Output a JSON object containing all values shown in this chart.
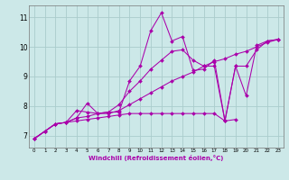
{
  "xlabel": "Windchill (Refroidissement éolien,°C)",
  "background_color": "#cce8e8",
  "grid_color": "#aacccc",
  "line_color": "#aa00aa",
  "xlim": [
    -0.5,
    23.5
  ],
  "ylim": [
    6.6,
    11.4
  ],
  "yticks": [
    7,
    8,
    9,
    10,
    11
  ],
  "xticks": [
    0,
    1,
    2,
    3,
    4,
    5,
    6,
    7,
    8,
    9,
    10,
    11,
    12,
    13,
    14,
    15,
    16,
    17,
    18,
    19,
    20,
    21,
    22,
    23
  ],
  "series": [
    {
      "x": [
        0,
        1,
        2,
        3,
        4,
        5,
        6,
        7,
        8,
        9,
        10,
        11,
        12,
        13,
        14,
        15,
        16,
        17,
        18,
        19,
        20,
        21,
        22,
        23
      ],
      "y": [
        6.9,
        7.15,
        7.4,
        7.45,
        7.6,
        8.1,
        7.75,
        7.8,
        7.8,
        8.85,
        9.35,
        10.55,
        11.15,
        10.2,
        10.35,
        9.2,
        9.25,
        9.55,
        7.5,
        9.35,
        8.35,
        10.05,
        10.2,
        10.25
      ]
    },
    {
      "x": [
        0,
        1,
        2,
        3,
        4,
        5,
        6,
        7,
        8,
        9,
        10,
        11,
        12,
        13,
        14,
        15,
        16,
        17,
        18,
        19,
        20,
        21,
        22,
        23
      ],
      "y": [
        6.9,
        7.15,
        7.4,
        7.45,
        7.85,
        7.8,
        7.75,
        7.8,
        8.05,
        8.5,
        8.85,
        9.25,
        9.55,
        9.85,
        9.9,
        9.55,
        9.35,
        9.35,
        7.5,
        9.35,
        9.35,
        9.9,
        10.2,
        10.25
      ]
    },
    {
      "x": [
        0,
        1,
        2,
        3,
        4,
        5,
        6,
        7,
        8,
        9,
        10,
        11,
        12,
        13,
        14,
        15,
        16,
        17,
        18,
        19,
        20,
        21,
        22,
        23
      ],
      "y": [
        6.9,
        7.15,
        7.4,
        7.45,
        7.6,
        7.65,
        7.75,
        7.75,
        7.85,
        8.05,
        8.25,
        8.45,
        8.65,
        8.85,
        9.0,
        9.15,
        9.35,
        9.5,
        9.6,
        9.75,
        9.85,
        10.0,
        10.15,
        10.25
      ]
    },
    {
      "x": [
        0,
        1,
        2,
        3,
        4,
        5,
        6,
        7,
        8,
        9,
        10,
        11,
        12,
        13,
        14,
        15,
        16,
        17,
        18,
        19
      ],
      "y": [
        6.9,
        7.15,
        7.4,
        7.45,
        7.5,
        7.55,
        7.6,
        7.65,
        7.7,
        7.75,
        7.75,
        7.75,
        7.75,
        7.75,
        7.75,
        7.75,
        7.75,
        7.75,
        7.5,
        7.55
      ]
    }
  ],
  "figsize": [
    3.2,
    2.0
  ],
  "dpi": 100
}
